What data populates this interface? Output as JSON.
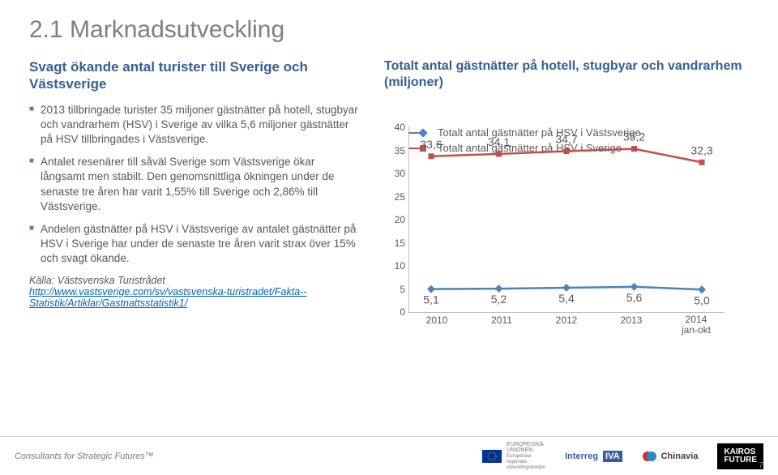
{
  "title": "2.1 Marknadsutveckling",
  "left": {
    "subtitle": "Svagt ökande antal turister till Sverige och Västsverige",
    "bullets": [
      "2013 tillbringade turister 35 miljoner gästnätter på hotell, stugbyar och vandrarhem (HSV) i Sverige av vilka 5,6 miljoner gästnätter på HSV tillbringades i Västsverige.",
      "Antalet resenärer till såväl Sverige som Västsverige ökar långsamt men stabilt. Den genomsnittliga ökningen under de senaste tre åren har varit 1,55% till Sverige och 2,86% till Västsverige.",
      "Andelen gästnätter på HSV i Västsverige av antalet gästnätter på HSV i Sverige har under de senaste tre åren varit strax över 15% och svagt ökande."
    ],
    "source_label": "Källa: Västsvenska Turistrådet",
    "source_url_label": "http://www.vastsverige.com/sv/vastsvenska-turistradet/Fakta--Statistik/Artiklar/Gastnattsstatistik1/"
  },
  "chart": {
    "title": "Totalt antal gästnätter på hotell, stugbyar och vandrarhem (miljoner)",
    "type": "line",
    "categories": [
      "2010",
      "2011",
      "2012",
      "2013",
      "2014\njan-okt"
    ],
    "ylim": [
      0,
      40
    ],
    "ytick_step": 5,
    "series": [
      {
        "name": "Totalt antal gästnätter på HSV i Västsverige",
        "color": "#4f81bd",
        "marker": "diamond",
        "values": [
          5.1,
          5.2,
          5.4,
          5.6,
          5.0
        ],
        "data_labels": [
          "5,1",
          "5,2",
          "5,4",
          "5,6",
          "5,0"
        ]
      },
      {
        "name": "Totalt antal gästnätter på HSV i Sverige",
        "color": "#c0504d",
        "marker": "square",
        "values": [
          33.6,
          34.1,
          34.7,
          35.2,
          32.3
        ],
        "data_labels": [
          "33,6",
          "34,1",
          "34,7",
          "35,2",
          "32,3"
        ]
      }
    ],
    "axis_color": "#808080",
    "label_color": "#595959",
    "label_fontsize": 12,
    "data_label_fontsize": 14,
    "background_color": "#ffffff",
    "line_width": 2.5,
    "marker_size": 7
  },
  "footer": {
    "tagline": "Consultants for Strategic Futures™",
    "logos": [
      "EUROPEISKA UNIONEN",
      "Interreg IVA",
      "Chinavia",
      "KAIROS FUTURE"
    ],
    "page": "7"
  }
}
